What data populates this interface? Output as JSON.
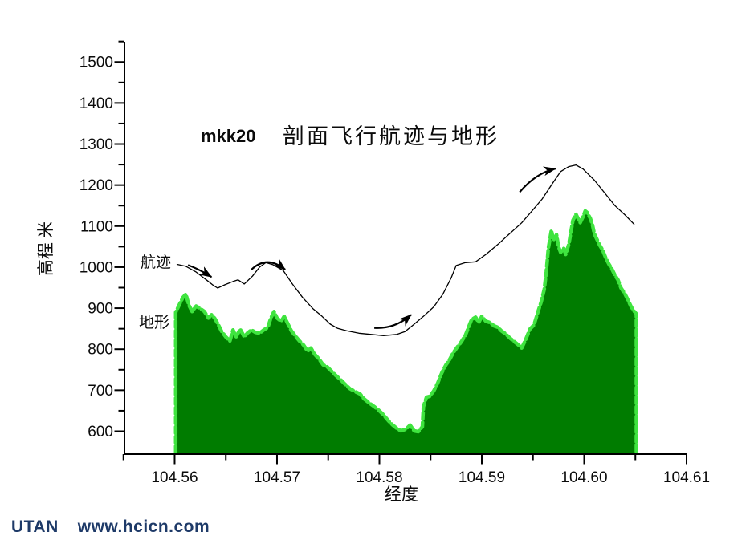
{
  "page": {
    "background": "#ffffff"
  },
  "watermark": {
    "brand": "UTAN",
    "site": "www.hcicn.com",
    "color": "#1e3a68"
  },
  "chart_data": {
    "type": "area",
    "title": {
      "prefix": "mkk20",
      "main": "剖面飞行航迹与地形"
    },
    "xlabel": "经度",
    "ylabel": "高程 米",
    "xlim": [
      104.555,
      104.61
    ],
    "ylim": [
      550,
      1560
    ],
    "x_tick_labels": [
      "104.56",
      "104.57",
      "104.58",
      "104.59",
      "104.60",
      "104.61"
    ],
    "y_tick_labels": [
      "600",
      "700",
      "800",
      "900",
      "1000",
      "1100",
      "1200",
      "1300",
      "1400",
      "1500"
    ],
    "x_minor_step": 0.005,
    "y_minor_step": 50,
    "grid": false,
    "series": [
      {
        "name": "航迹",
        "type": "line",
        "color": "#000000",
        "points": [
          [
            104.5602,
            1007
          ],
          [
            104.5611,
            1002
          ],
          [
            104.5621,
            988
          ],
          [
            104.5631,
            969
          ],
          [
            104.5637,
            957
          ],
          [
            104.5642,
            949
          ],
          [
            104.5649,
            957
          ],
          [
            104.5657,
            965
          ],
          [
            104.5662,
            969
          ],
          [
            104.5668,
            959
          ],
          [
            104.5676,
            978
          ],
          [
            104.5683,
            1000
          ],
          [
            104.5689,
            1011
          ],
          [
            104.5696,
            1006
          ],
          [
            104.5706,
            992
          ],
          [
            104.5715,
            959
          ],
          [
            104.5725,
            926
          ],
          [
            104.5735,
            899
          ],
          [
            104.5744,
            880
          ],
          [
            104.5752,
            861
          ],
          [
            104.5759,
            851
          ],
          [
            104.5768,
            845
          ],
          [
            104.578,
            839
          ],
          [
            104.5792,
            836
          ],
          [
            104.5804,
            833
          ],
          [
            104.5817,
            836
          ],
          [
            104.5825,
            843
          ],
          [
            104.5833,
            859
          ],
          [
            104.5843,
            880
          ],
          [
            104.5853,
            903
          ],
          [
            104.5862,
            934
          ],
          [
            104.587,
            973
          ],
          [
            104.5875,
            1004
          ],
          [
            104.5884,
            1011
          ],
          [
            104.5894,
            1013
          ],
          [
            104.5904,
            1031
          ],
          [
            104.5916,
            1056
          ],
          [
            104.5927,
            1081
          ],
          [
            104.5939,
            1108
          ],
          [
            104.5949,
            1137
          ],
          [
            104.5959,
            1166
          ],
          [
            104.5969,
            1204
          ],
          [
            104.5977,
            1233
          ],
          [
            104.5985,
            1245
          ],
          [
            104.5992,
            1249
          ],
          [
            104.5999,
            1239
          ],
          [
            104.601,
            1212
          ],
          [
            104.602,
            1181
          ],
          [
            104.603,
            1150
          ],
          [
            104.604,
            1127
          ],
          [
            104.6049,
            1104
          ]
        ]
      },
      {
        "name": "地形",
        "type": "area",
        "fill": "#007c00",
        "edge": "#3fe43f",
        "points": [
          [
            104.5601,
            890
          ],
          [
            104.5605,
            911
          ],
          [
            104.5608,
            926
          ],
          [
            104.5611,
            934
          ],
          [
            104.5614,
            907
          ],
          [
            104.5617,
            892
          ],
          [
            104.5621,
            905
          ],
          [
            104.5625,
            899
          ],
          [
            104.5629,
            892
          ],
          [
            104.5633,
            876
          ],
          [
            104.5636,
            884
          ],
          [
            104.5639,
            876
          ],
          [
            104.5642,
            863
          ],
          [
            104.5646,
            843
          ],
          [
            104.565,
            830
          ],
          [
            104.5654,
            820
          ],
          [
            104.5657,
            847
          ],
          [
            104.566,
            830
          ],
          [
            104.5664,
            849
          ],
          [
            104.5668,
            830
          ],
          [
            104.5671,
            839
          ],
          [
            104.5675,
            847
          ],
          [
            104.5679,
            841
          ],
          [
            104.5683,
            839
          ],
          [
            104.5687,
            847
          ],
          [
            104.5691,
            853
          ],
          [
            104.5694,
            876
          ],
          [
            104.5697,
            892
          ],
          [
            104.57,
            876
          ],
          [
            104.5704,
            868
          ],
          [
            104.5707,
            880
          ],
          [
            104.571,
            865
          ],
          [
            104.5714,
            845
          ],
          [
            104.5718,
            832
          ],
          [
            104.5722,
            820
          ],
          [
            104.5726,
            810
          ],
          [
            104.573,
            795
          ],
          [
            104.5733,
            803
          ],
          [
            104.5737,
            787
          ],
          [
            104.5741,
            776
          ],
          [
            104.5745,
            762
          ],
          [
            104.5749,
            757
          ],
          [
            104.5753,
            747
          ],
          [
            104.5757,
            737
          ],
          [
            104.5762,
            726
          ],
          [
            104.5766,
            716
          ],
          [
            104.5771,
            704
          ],
          [
            104.5776,
            697
          ],
          [
            104.5781,
            691
          ],
          [
            104.5785,
            679
          ],
          [
            104.579,
            669
          ],
          [
            104.5795,
            660
          ],
          [
            104.5799,
            652
          ],
          [
            104.5804,
            640
          ],
          [
            104.5809,
            625
          ],
          [
            104.5813,
            615
          ],
          [
            104.5817,
            607
          ],
          [
            104.5821,
            601
          ],
          [
            104.5826,
            605
          ],
          [
            104.583,
            615
          ],
          [
            104.5834,
            601
          ],
          [
            104.5838,
            599
          ],
          [
            104.5842,
            611
          ],
          [
            104.5843,
            660
          ],
          [
            104.5846,
            683
          ],
          [
            104.5849,
            685
          ],
          [
            104.5853,
            698
          ],
          [
            104.5857,
            718
          ],
          [
            104.5861,
            743
          ],
          [
            104.5865,
            762
          ],
          [
            104.5868,
            772
          ],
          [
            104.5872,
            791
          ],
          [
            104.5876,
            805
          ],
          [
            104.588,
            818
          ],
          [
            104.5884,
            834
          ],
          [
            104.5887,
            853
          ],
          [
            104.589,
            872
          ],
          [
            104.5894,
            878
          ],
          [
            104.5897,
            865
          ],
          [
            104.59,
            880
          ],
          [
            104.5904,
            868
          ],
          [
            104.5908,
            865
          ],
          [
            104.5912,
            857
          ],
          [
            104.5916,
            853
          ],
          [
            104.5919,
            845
          ],
          [
            104.5923,
            838
          ],
          [
            104.5928,
            826
          ],
          [
            104.5932,
            818
          ],
          [
            104.5936,
            810
          ],
          [
            104.5939,
            803
          ],
          [
            104.5943,
            824
          ],
          [
            104.5947,
            849
          ],
          [
            104.5951,
            859
          ],
          [
            104.5955,
            892
          ],
          [
            104.5958,
            915
          ],
          [
            104.5961,
            946
          ],
          [
            104.5963,
            988
          ],
          [
            104.5965,
            1046
          ],
          [
            104.5967,
            1075
          ],
          [
            104.5968,
            1090
          ],
          [
            104.597,
            1065
          ],
          [
            104.5973,
            1079
          ],
          [
            104.5975,
            1050
          ],
          [
            104.5977,
            1036
          ],
          [
            104.598,
            1046
          ],
          [
            104.5982,
            1031
          ],
          [
            104.5985,
            1056
          ],
          [
            104.5987,
            1085
          ],
          [
            104.5989,
            1114
          ],
          [
            104.5992,
            1129
          ],
          [
            104.5994,
            1119
          ],
          [
            104.5996,
            1108
          ],
          [
            104.5999,
            1123
          ],
          [
            104.6001,
            1137
          ],
          [
            104.6003,
            1133
          ],
          [
            104.6006,
            1119
          ],
          [
            104.6008,
            1104
          ],
          [
            104.601,
            1081
          ],
          [
            104.6013,
            1065
          ],
          [
            104.6015,
            1054
          ],
          [
            104.6018,
            1042
          ],
          [
            104.6021,
            1023
          ],
          [
            104.6024,
            1008
          ],
          [
            104.6027,
            996
          ],
          [
            104.603,
            981
          ],
          [
            104.6033,
            969
          ],
          [
            104.6036,
            949
          ],
          [
            104.604,
            934
          ],
          [
            104.6043,
            919
          ],
          [
            104.6046,
            903
          ],
          [
            104.6049,
            892
          ],
          [
            104.6051,
            886
          ]
        ]
      }
    ],
    "flight_arrows": [
      {
        "tail": [
          104.5613,
          1005
        ],
        "ctrl": [
          104.5624,
          995
        ],
        "head": [
          104.5636,
          976
        ]
      },
      {
        "tail": [
          104.5675,
          994
        ],
        "ctrl": [
          104.569,
          1030
        ],
        "head": [
          104.5708,
          994
        ]
      },
      {
        "tail": [
          104.5795,
          852
        ],
        "ctrl": [
          104.5815,
          849
        ],
        "head": [
          104.5831,
          884
        ]
      },
      {
        "tail": [
          104.5937,
          1183
        ],
        "ctrl": [
          104.5953,
          1230
        ],
        "head": [
          104.5972,
          1240
        ]
      }
    ]
  }
}
